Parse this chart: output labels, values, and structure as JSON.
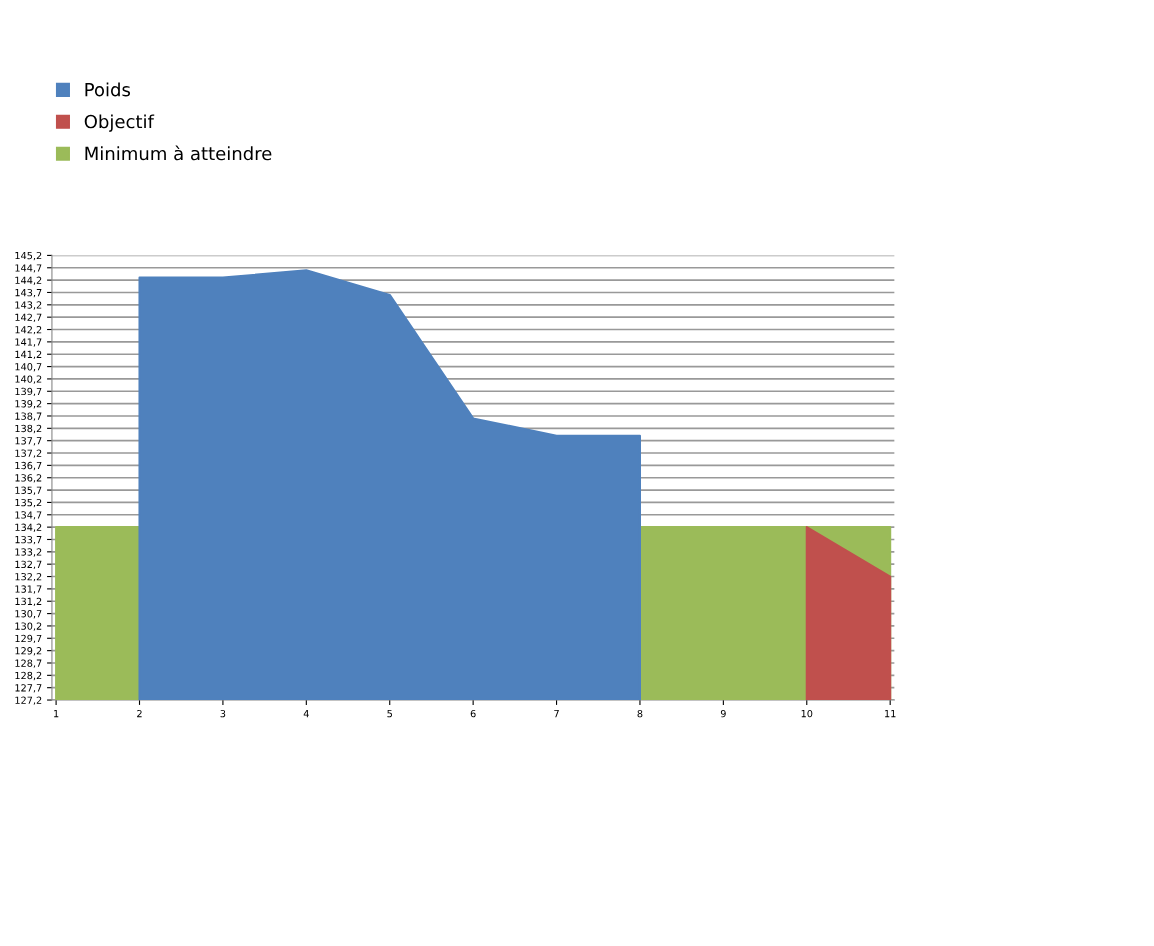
{
  "chart_data": {
    "type": "area",
    "categories": [
      "1",
      "2",
      "3",
      "4",
      "5",
      "6",
      "7",
      "8",
      "9",
      "10",
      "11"
    ],
    "series": [
      {
        "name": "Poids",
        "color": "#4f81bd",
        "values": [
          null,
          144.3,
          144.3,
          144.6,
          143.6,
          138.6,
          137.9,
          137.9,
          null,
          null,
          null
        ]
      },
      {
        "name": "Objectif",
        "color": "#c0504d",
        "values": [
          null,
          null,
          null,
          null,
          null,
          null,
          null,
          null,
          null,
          134.2,
          132.2
        ]
      },
      {
        "name": "Minimum à atteindre",
        "color": "#9bbb59",
        "values": [
          134.2,
          134.2,
          null,
          null,
          null,
          null,
          null,
          134.2,
          134.2,
          134.2,
          134.2
        ]
      }
    ],
    "ylim": [
      127.2,
      145.2
    ],
    "yticks": [
      {
        "value": 127.2,
        "label": "127,2"
      },
      {
        "value": 127.7,
        "label": "127,7"
      },
      {
        "value": 128.2,
        "label": "128,2"
      },
      {
        "value": 128.7,
        "label": "128,7"
      },
      {
        "value": 129.2,
        "label": "129,2"
      },
      {
        "value": 129.7,
        "label": "129,7"
      },
      {
        "value": 130.2,
        "label": "130,2"
      },
      {
        "value": 130.7,
        "label": "130,7"
      },
      {
        "value": 131.2,
        "label": "131,2"
      },
      {
        "value": 131.7,
        "label": "131,7"
      },
      {
        "value": 132.2,
        "label": "132,2"
      },
      {
        "value": 132.7,
        "label": "132,7"
      },
      {
        "value": 133.2,
        "label": "133,2"
      },
      {
        "value": 133.7,
        "label": "133,7"
      },
      {
        "value": 134.2,
        "label": "134,2"
      },
      {
        "value": 134.7,
        "label": "134,7"
      },
      {
        "value": 135.2,
        "label": "135,2"
      },
      {
        "value": 135.7,
        "label": "135,7"
      },
      {
        "value": 136.2,
        "label": "136,2"
      },
      {
        "value": 136.7,
        "label": "136,7"
      },
      {
        "value": 137.2,
        "label": "137,2"
      },
      {
        "value": 137.7,
        "label": "137,7"
      },
      {
        "value": 138.2,
        "label": "138,2"
      },
      {
        "value": 138.7,
        "label": "138,7"
      },
      {
        "value": 139.2,
        "label": "139,2"
      },
      {
        "value": 139.7,
        "label": "139,7"
      },
      {
        "value": 140.2,
        "label": "140,2"
      },
      {
        "value": 140.7,
        "label": "140,7"
      },
      {
        "value": 141.2,
        "label": "141,2"
      },
      {
        "value": 141.7,
        "label": "141,7"
      },
      {
        "value": 142.2,
        "label": "142,2"
      },
      {
        "value": 142.7,
        "label": "142,7"
      },
      {
        "value": 143.2,
        "label": "143,2"
      },
      {
        "value": 143.7,
        "label": "143,7"
      },
      {
        "value": 144.2,
        "label": "144,2"
      },
      {
        "value": 144.7,
        "label": "144,7"
      },
      {
        "value": 145.2,
        "label": "145,2"
      }
    ],
    "grid": "y",
    "legend": "top left"
  }
}
